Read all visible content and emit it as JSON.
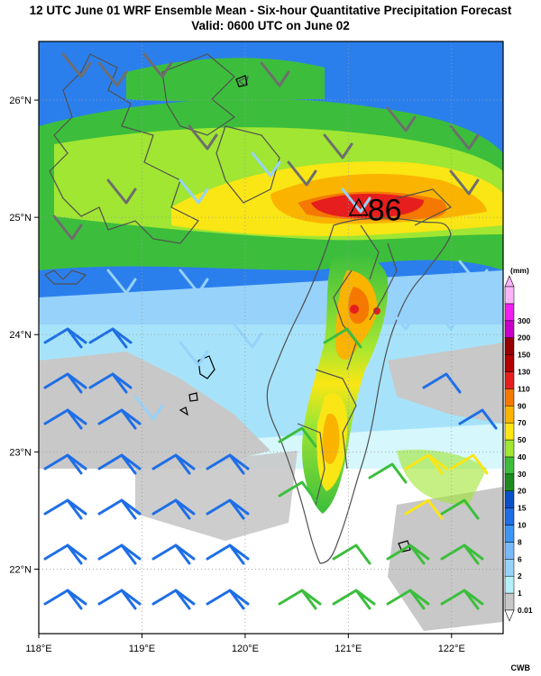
{
  "title": {
    "line1": "12 UTC June 01 WRF Ensemble Mean - Six-hour Quantitative Precipitation Forecast",
    "line2": "Valid: 0600 UTC on June 02"
  },
  "map": {
    "lon_range": [
      118.0,
      122.5
    ],
    "lat_range": [
      21.45,
      26.5
    ],
    "lon_ticks": [
      "118°E",
      "119°E",
      "120°E",
      "121°E",
      "122°E"
    ],
    "lon_tick_values": [
      118,
      119,
      120,
      121,
      122
    ],
    "lat_ticks": [
      "26°N",
      "25°N",
      "24°N",
      "23°N",
      "22°N"
    ],
    "lat_tick_values": [
      26,
      25,
      24,
      23,
      22
    ],
    "grid": "dotted",
    "max_marker": {
      "label": "86",
      "symbol": "triangle",
      "lon": 121.1,
      "lat": 25.08
    }
  },
  "colorbar": {
    "unit": "(mm)",
    "levels": [
      "0.01",
      "1",
      "2",
      "6",
      "8",
      "10",
      "15",
      "20",
      "30",
      "40",
      "50",
      "70",
      "90",
      "110",
      "130",
      "150",
      "200",
      "300"
    ],
    "colors": [
      "#c8c8c8",
      "#b4f0fa",
      "#96d2fa",
      "#78b9fa",
      "#3c96f5",
      "#1e6ee6",
      "#0a50c8",
      "#1e8c1e",
      "#3cbe3c",
      "#a0e632",
      "#fae614",
      "#fab400",
      "#f57800",
      "#e61e1e",
      "#b40000",
      "#960000",
      "#c800c8",
      "#f01ef0",
      "#fab4fa"
    ]
  },
  "credit": "CWB"
}
